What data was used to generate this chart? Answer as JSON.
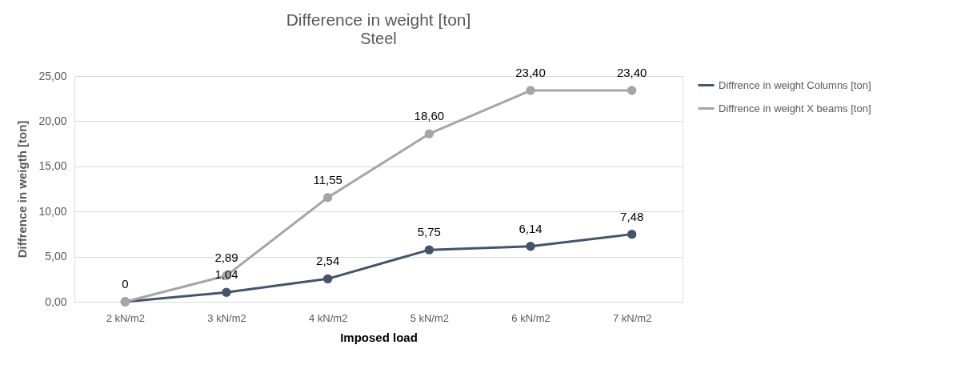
{
  "chart_data": {
    "type": "line",
    "title": "Difference in weight [ton]",
    "subtitle": "Steel",
    "xlabel": "Imposed load",
    "ylabel": "Diffrence in weigth [ton]",
    "categories": [
      "2 kN/m2",
      "3 kN/m2",
      "4 kN/m2",
      "5 kN/m2",
      "6 kN/m2",
      "7 kN/m2"
    ],
    "series": [
      {
        "name": "Diffrence in weight Columns [ton]",
        "color": "#44546a",
        "values": [
          0,
          1.04,
          2.54,
          5.75,
          6.14,
          7.48
        ],
        "value_labels": [
          null,
          "1,04",
          "2,54",
          "5,75",
          "6,14",
          "7,48"
        ]
      },
      {
        "name": "Diffrence in weight X beams [ton]",
        "color": "#a5a5a5",
        "values": [
          0,
          2.89,
          11.55,
          18.6,
          23.4,
          23.4
        ],
        "value_labels": [
          "0",
          "2,89",
          "11,55",
          "18,60",
          "23,40",
          "23,40"
        ]
      }
    ],
    "ylim": [
      0,
      25
    ],
    "yticks": [
      {
        "value": 0,
        "label": "0,00"
      },
      {
        "value": 5,
        "label": "5,00"
      },
      {
        "value": 10,
        "label": "10,00"
      },
      {
        "value": 15,
        "label": "15,00"
      },
      {
        "value": 20,
        "label": "20,00"
      },
      {
        "value": 25,
        "label": "25,00"
      }
    ],
    "grid": "y",
    "legend": "right",
    "marker": "circle",
    "line_style": "solid"
  }
}
